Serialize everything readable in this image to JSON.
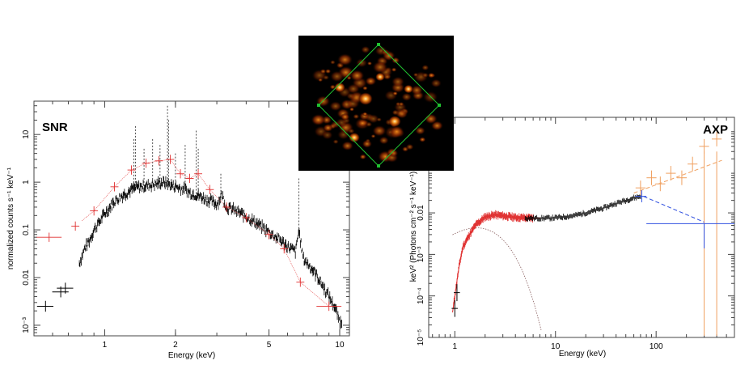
{
  "chart_data": [
    {
      "type": "scatter",
      "title": "SNR",
      "xlabel": "Energy (keV)",
      "ylabel": "normalized counts s⁻¹ keV⁻¹",
      "x_scale": "log",
      "y_scale": "log",
      "xlim": [
        0.5,
        11
      ],
      "ylim": [
        0.0006,
        50
      ],
      "x_ticks": [
        {
          "value": 1,
          "label": "1"
        },
        {
          "value": 2,
          "label": "2"
        },
        {
          "value": 5,
          "label": "5"
        },
        {
          "value": 10,
          "label": "10"
        }
      ],
      "y_ticks": [
        {
          "value": 0.001,
          "label": "10⁻³"
        },
        {
          "value": 0.01,
          "label": "0.01"
        },
        {
          "value": 0.1,
          "label": "0.1"
        },
        {
          "value": 1,
          "label": "1"
        },
        {
          "value": 10,
          "label": "10"
        }
      ],
      "series": [
        {
          "color": "#000000",
          "x": [
            0.56,
            0.65,
            0.68,
            0.78,
            0.82,
            0.86,
            0.9,
            0.95,
            1.0,
            1.05,
            1.1,
            1.2,
            1.3,
            1.4,
            1.5,
            1.6,
            1.7,
            1.8,
            1.86,
            1.95,
            2.1,
            2.2,
            2.3,
            2.45,
            2.6,
            2.8,
            3.0,
            3.15,
            3.3,
            3.5,
            3.8,
            4.1,
            4.5,
            5.0,
            5.5,
            6.0,
            6.5,
            6.7,
            7.0,
            7.5,
            8.0,
            8.5,
            9.0,
            9.5,
            10.0
          ],
          "y": [
            0.0025,
            0.005,
            0.006,
            0.02,
            0.04,
            0.06,
            0.1,
            0.15,
            0.22,
            0.3,
            0.4,
            0.55,
            0.7,
            0.8,
            0.85,
            0.9,
            0.95,
            1.0,
            0.9,
            0.85,
            0.75,
            0.7,
            0.6,
            0.55,
            0.48,
            0.42,
            0.35,
            0.55,
            0.3,
            0.27,
            0.22,
            0.18,
            0.13,
            0.09,
            0.065,
            0.045,
            0.035,
            0.1,
            0.025,
            0.017,
            0.011,
            0.0065,
            0.004,
            0.0025,
            0.0012
          ]
        },
        {
          "color": "#e03030",
          "x": [
            0.58,
            0.75,
            0.9,
            1.1,
            1.3,
            1.5,
            1.7,
            1.9,
            2.1,
            2.3,
            2.5,
            2.8,
            3.3,
            4.0,
            5.0,
            5.8,
            6.8,
            9.0
          ],
          "y": [
            0.07,
            0.12,
            0.25,
            0.8,
            1.8,
            2.5,
            2.8,
            3.0,
            1.5,
            1.2,
            1.5,
            0.7,
            0.3,
            0.18,
            0.08,
            0.04,
            0.008,
            0.0025
          ]
        }
      ]
    },
    {
      "type": "line",
      "title": "AXP",
      "xlabel": "Energy (keV)",
      "ylabel": "keV² (Photons cm⁻² s⁻¹ keV⁻¹)",
      "x_scale": "log",
      "y_scale": "log",
      "xlim": [
        0.55,
        600
      ],
      "ylim": [
        1e-05,
        2
      ],
      "x_ticks": [
        {
          "value": 1,
          "label": "1"
        },
        {
          "value": 10,
          "label": "10"
        },
        {
          "value": 100,
          "label": "100"
        }
      ],
      "y_ticks": [
        {
          "value": 1e-05,
          "label": "10⁻⁵"
        },
        {
          "value": 0.0001,
          "label": "10⁻⁴"
        },
        {
          "value": 0.001,
          "label": "10⁻³"
        },
        {
          "value": 0.01,
          "label": "0.01"
        }
      ],
      "series": [
        {
          "color": "#e03030",
          "x": [
            0.95,
            1.0,
            1.1,
            1.2,
            1.4,
            1.6,
            2.0,
            2.5,
            3.0,
            4.0,
            5.0,
            7.0
          ],
          "y": [
            4e-05,
            0.0001,
            0.0005,
            0.0015,
            0.003,
            0.005,
            0.008,
            0.009,
            0.0085,
            0.0078,
            0.0076,
            0.0075
          ]
        },
        {
          "color": "#000000",
          "x": [
            5.0,
            7.0,
            10.0,
            15.0,
            20.0,
            30.0,
            40.0,
            50.0,
            60.0,
            70.0
          ],
          "y": [
            0.0075,
            0.0074,
            0.0076,
            0.0085,
            0.01,
            0.013,
            0.017,
            0.02,
            0.023,
            0.025
          ]
        },
        {
          "color": "#f0a060",
          "x": [
            70.0,
            90.0,
            110.0,
            140.0,
            180.0,
            230.0,
            300.0,
            400.0
          ],
          "y": [
            0.04,
            0.07,
            0.05,
            0.09,
            0.07,
            0.15,
            0.4,
            0.6
          ]
        },
        {
          "color": "#3050e0",
          "x": [
            75.0,
            300.0
          ],
          "y": [
            0.025,
            0.006
          ]
        }
      ]
    }
  ],
  "inset_image": {
    "image_kind": "false-color X-ray image",
    "colors": [
      "#000000",
      "#5a1500",
      "#c24500",
      "#f08a1a",
      "#fff0b0"
    ],
    "region_color": "#20c030"
  },
  "colors": {
    "black_data": "#000000",
    "red_data": "#e03030",
    "orange_data": "#f0a060",
    "blue_data": "#3050e0",
    "model_gray": "#8a6060"
  }
}
